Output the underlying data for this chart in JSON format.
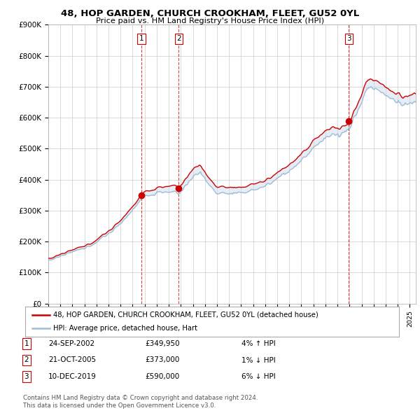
{
  "title": "48, HOP GARDEN, CHURCH CROOKHAM, FLEET, GU52 0YL",
  "subtitle": "Price paid vs. HM Land Registry's House Price Index (HPI)",
  "ylim": [
    0,
    900000
  ],
  "yticks": [
    0,
    100000,
    200000,
    300000,
    400000,
    500000,
    600000,
    700000,
    800000,
    900000
  ],
  "ytick_labels": [
    "£0",
    "£100K",
    "£200K",
    "£300K",
    "£400K",
    "£500K",
    "£600K",
    "£700K",
    "£800K",
    "£900K"
  ],
  "sale_times": [
    2002.75,
    2005.83,
    2019.95
  ],
  "sale_prices": [
    349950,
    373000,
    590000
  ],
  "sale_labels": [
    "1",
    "2",
    "3"
  ],
  "legend_line1": "48, HOP GARDEN, CHURCH CROOKHAM, FLEET, GU52 0YL (detached house)",
  "legend_line2": "HPI: Average price, detached house, Hart",
  "table_rows": [
    {
      "num": "1",
      "date": "24-SEP-2002",
      "price": "£349,950",
      "change": "4% ↑ HPI"
    },
    {
      "num": "2",
      "date": "21-OCT-2005",
      "price": "£373,000",
      "change": "1% ↓ HPI"
    },
    {
      "num": "3",
      "date": "10-DEC-2019",
      "price": "£590,000",
      "change": "6% ↓ HPI"
    }
  ],
  "footer1": "Contains HM Land Registry data © Crown copyright and database right 2024.",
  "footer2": "This data is licensed under the Open Government Licence v3.0.",
  "hpi_color": "#a0bcd8",
  "price_color": "#cc0000",
  "shade_color": "#c8d8ea",
  "vline_color": "#cc0000",
  "background_color": "#ffffff",
  "grid_color": "#cccccc",
  "xlim_start": 1995,
  "xlim_end": 2025.5
}
